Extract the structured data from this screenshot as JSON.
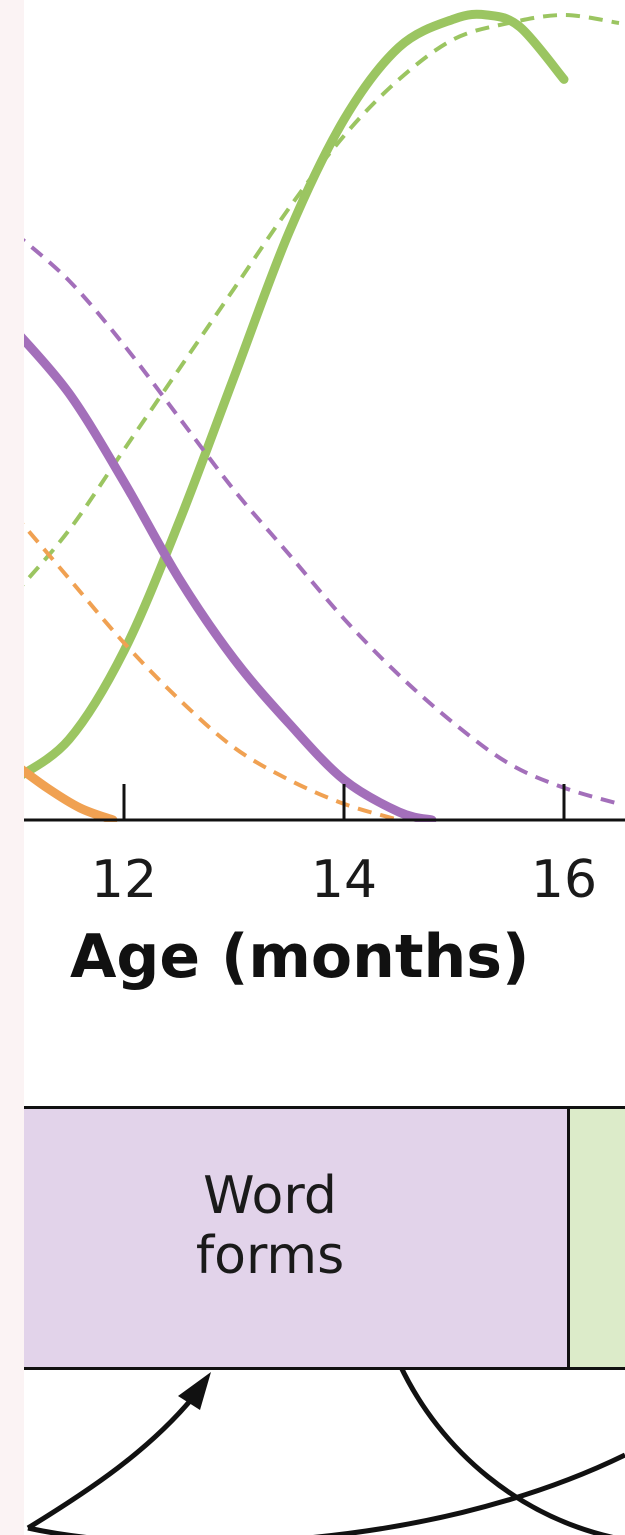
{
  "colors": {
    "background": "#ffffff",
    "strip": "#fbf3f4",
    "green": "#9bc561",
    "purple": "#a36fba",
    "orange": "#f0a152",
    "axis": "#111111",
    "word_forms_box": "#e2d3ea",
    "next_box": "#dcebc9"
  },
  "chart_data": {
    "type": "line",
    "xlabel": "Age (months)",
    "ylabel": "",
    "x_ticks": [
      12,
      14,
      16
    ],
    "xlim": [
      11,
      16.5
    ],
    "ylim": [
      0,
      1
    ],
    "grid": false,
    "series": [
      {
        "color": "#9bc561",
        "style": "solid",
        "x": [
          11.0,
          11.5,
          12.0,
          12.5,
          13.0,
          13.5,
          14.0,
          14.5,
          15.0,
          15.3,
          15.6,
          16.0
        ],
        "y": [
          0.05,
          0.1,
          0.21,
          0.37,
          0.55,
          0.73,
          0.87,
          0.96,
          0.995,
          1.0,
          0.985,
          0.92
        ]
      },
      {
        "color": "#9bc561",
        "style": "dashed",
        "x": [
          11.0,
          11.5,
          12.0,
          12.5,
          13.0,
          13.5,
          14.0,
          14.5,
          15.0,
          15.5,
          16.0,
          16.5
        ],
        "y": [
          0.28,
          0.36,
          0.46,
          0.56,
          0.66,
          0.76,
          0.85,
          0.92,
          0.97,
          0.99,
          1.0,
          0.99
        ]
      },
      {
        "color": "#a36fba",
        "style": "solid",
        "x": [
          11.0,
          11.5,
          12.0,
          12.5,
          13.0,
          13.5,
          14.0,
          14.5,
          14.8
        ],
        "y": [
          0.61,
          0.53,
          0.42,
          0.3,
          0.2,
          0.12,
          0.05,
          0.01,
          0.0
        ]
      },
      {
        "color": "#a36fba",
        "style": "dashed",
        "x": [
          11.0,
          11.5,
          12.0,
          12.5,
          13.0,
          13.5,
          14.0,
          14.5,
          15.0,
          15.5,
          16.0,
          16.5
        ],
        "y": [
          0.73,
          0.67,
          0.59,
          0.5,
          0.41,
          0.33,
          0.25,
          0.18,
          0.12,
          0.07,
          0.04,
          0.02
        ]
      },
      {
        "color": "#f0a152",
        "style": "dashed",
        "x": [
          11.0,
          11.5,
          12.0,
          12.5,
          13.0,
          13.5,
          14.0,
          14.5
        ],
        "y": [
          0.38,
          0.3,
          0.22,
          0.15,
          0.09,
          0.05,
          0.02,
          0.0
        ]
      },
      {
        "color": "#f0a152",
        "style": "solid",
        "x": [
          11.0,
          11.3,
          11.6,
          11.9
        ],
        "y": [
          0.07,
          0.04,
          0.015,
          0.0
        ]
      }
    ]
  },
  "stages": [
    {
      "label_line1": "Word",
      "label_line2": "forms"
    }
  ]
}
